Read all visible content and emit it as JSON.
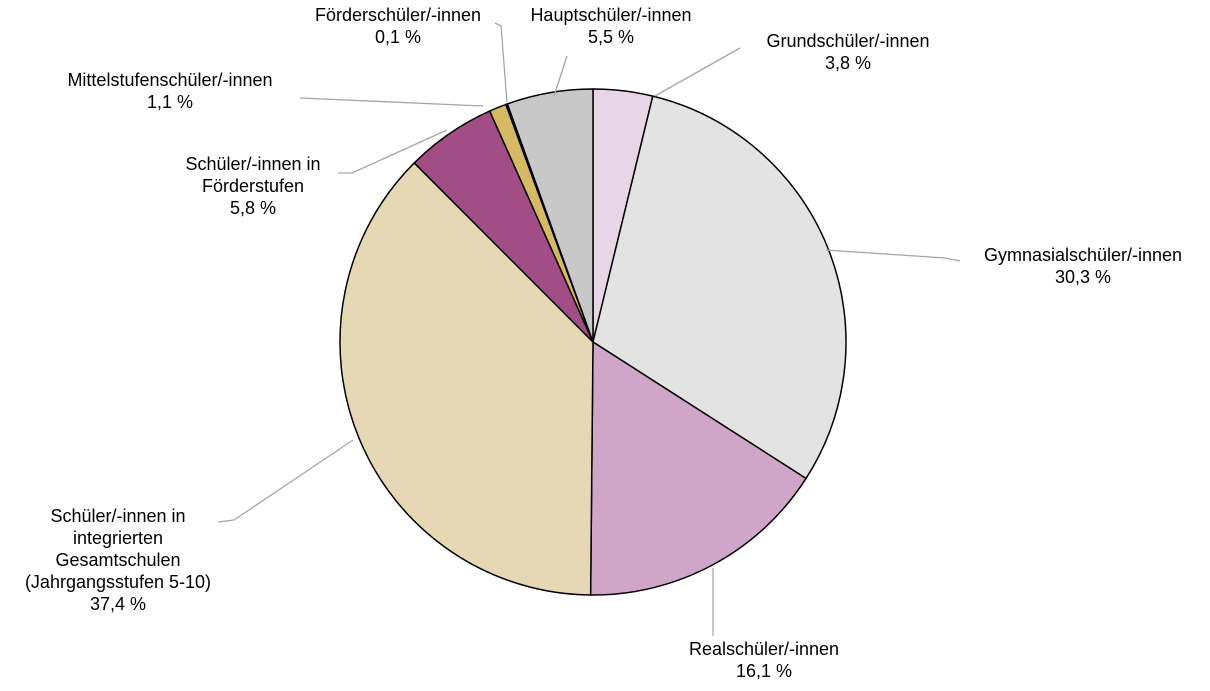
{
  "chart_data": {
    "type": "pie",
    "start_angle_deg": 0,
    "direction": "clockwise",
    "slices": [
      {
        "name": "Grundschüler/-innen",
        "value": 3.8,
        "label": "3,8 %",
        "color": "#e8d5e6"
      },
      {
        "name": "Gymnasialschüler/-innen",
        "value": 30.3,
        "label": "30,3 %",
        "color": "#e3e3e3"
      },
      {
        "name": "Realschüler/-innen",
        "value": 16.1,
        "label": "16,1 %",
        "color": "#cfa6c8"
      },
      {
        "name": "Schüler/-innen in integrierten Gesamtschulen (Jahrgangsstufen 5-10)",
        "value": 37.4,
        "label": "37,4 %",
        "color": "#e6d8b4"
      },
      {
        "name": "Schüler/-innen in Förderstufen",
        "value": 5.8,
        "label": "5,8 %",
        "color": "#a24d85"
      },
      {
        "name": "Mittelstufenschüler/-innen",
        "value": 1.1,
        "label": "1,1 %",
        "color": "#d6b964"
      },
      {
        "name": "Förderschüler/-innen",
        "value": 0.1,
        "label": "0,1 %",
        "color": "#2b2b2b"
      },
      {
        "name": "Hauptschüler/-innen",
        "value": 5.5,
        "label": "5,5 %",
        "color": "#c8c8c8"
      }
    ]
  }
}
